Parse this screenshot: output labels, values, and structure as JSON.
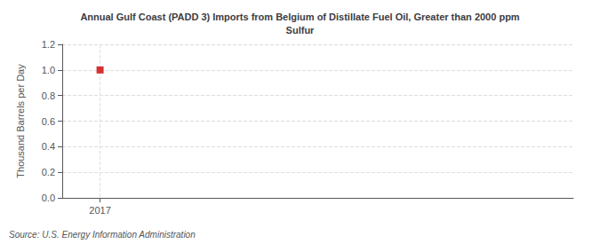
{
  "chart_data": {
    "type": "scatter",
    "title": "Annual Gulf Coast (PADD 3) Imports from Belgium of Distillate Fuel Oil, Greater than 2000 ppm\nSulfur",
    "ylabel": "Thousand Barrels per Day",
    "source": "Source: U.S. Energy Information Administration",
    "x": [
      2017
    ],
    "values": [
      1.0
    ],
    "color": "#cc0000",
    "marker": "square",
    "xlim": [
      2016.6,
      2022.0
    ],
    "xticks": [
      2017
    ],
    "ylim": [
      0.0,
      1.2
    ],
    "yticks": [
      {
        "value": 0.0,
        "label": "0.0"
      },
      0.2,
      0.4,
      0.6,
      0.8,
      {
        "value": 1.0,
        "label": "1.0"
      },
      1.2
    ],
    "grid": true
  }
}
